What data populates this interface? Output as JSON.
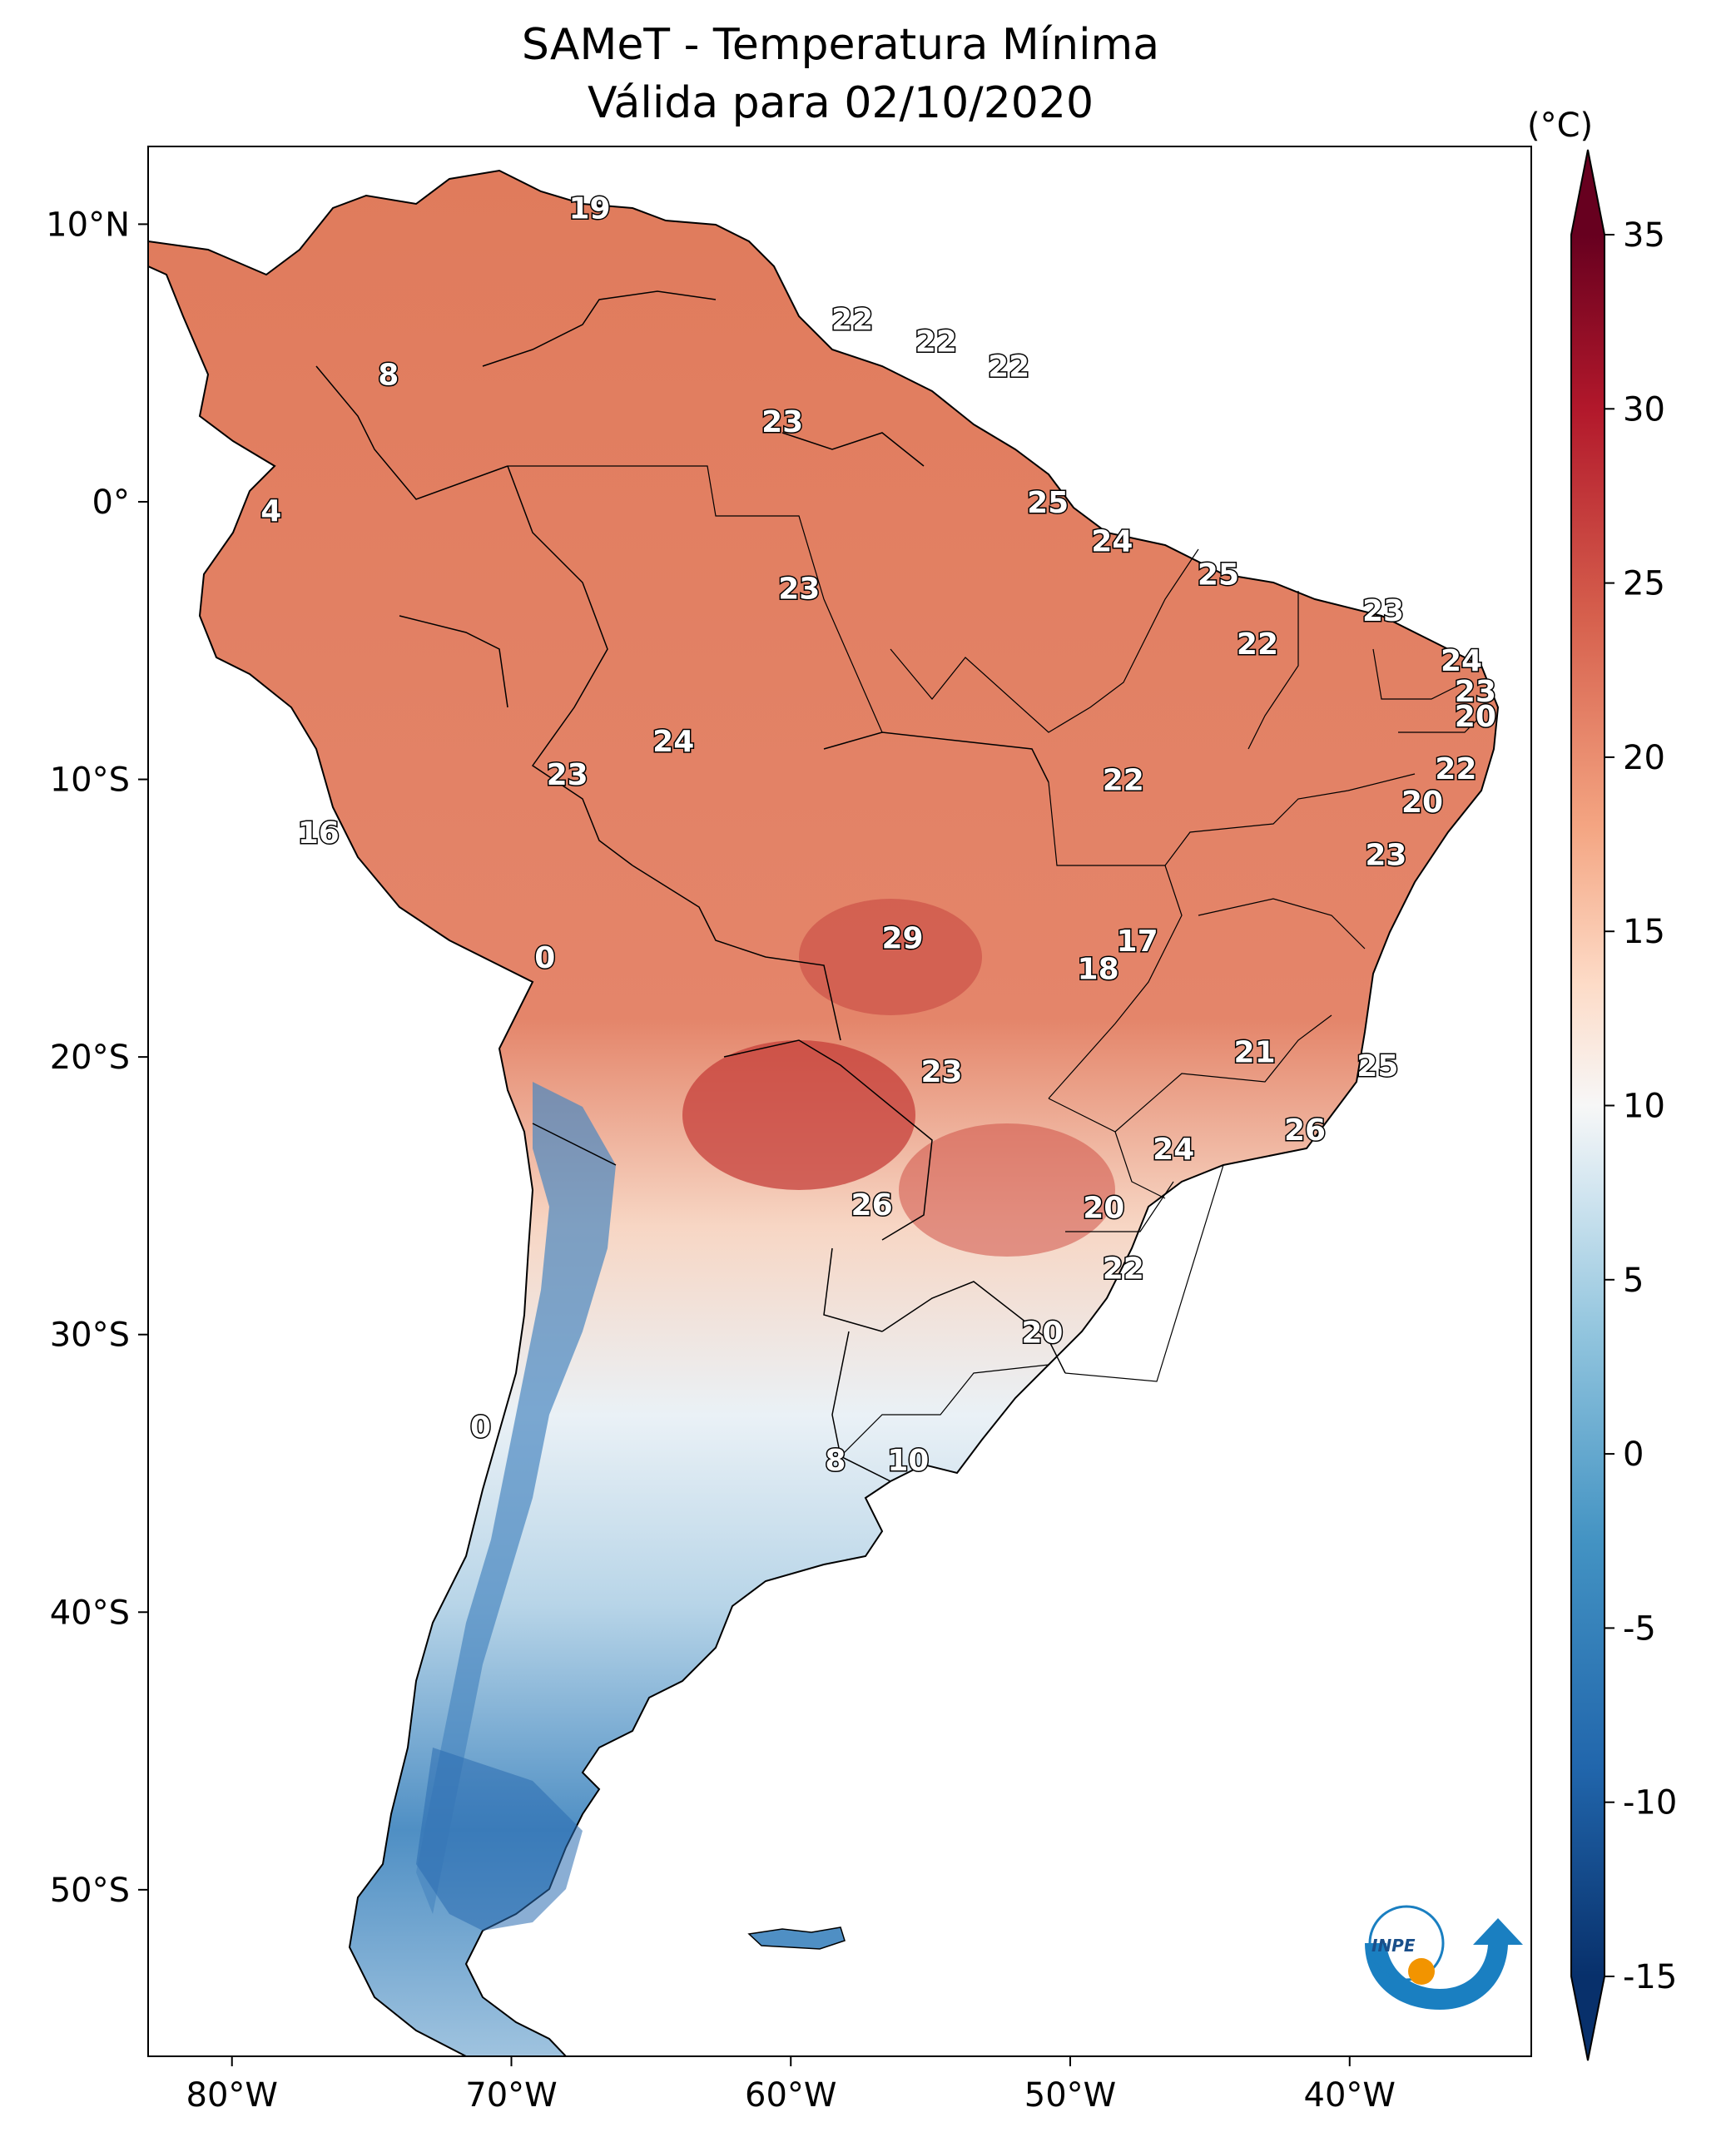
{
  "title": "SAMeT - Temperatura Mínima",
  "subtitle": "Válida para 02/10/2020",
  "map": {
    "lon_range": [
      -83,
      -33.5
    ],
    "lat_range": [
      -56,
      12.8
    ],
    "lon_ticks": [
      {
        "value": -80,
        "label": "80°W"
      },
      {
        "value": -70,
        "label": "70°W"
      },
      {
        "value": -60,
        "label": "60°W"
      },
      {
        "value": -50,
        "label": "50°W"
      },
      {
        "value": -40,
        "label": "40°W"
      }
    ],
    "lat_ticks": [
      {
        "value": 10,
        "label": "10°N"
      },
      {
        "value": 0,
        "label": "0°"
      },
      {
        "value": -10,
        "label": "10°S"
      },
      {
        "value": -20,
        "label": "20°S"
      },
      {
        "value": -30,
        "label": "30°S"
      },
      {
        "value": -40,
        "label": "40°S"
      },
      {
        "value": -50,
        "label": "50°S"
      }
    ],
    "labels": [
      {
        "lon": -67.2,
        "lat": 10.6,
        "text": "19"
      },
      {
        "lon": -57.8,
        "lat": 6.6,
        "text": "22"
      },
      {
        "lon": -54.8,
        "lat": 5.8,
        "text": "22"
      },
      {
        "lon": -52.2,
        "lat": 4.9,
        "text": "22"
      },
      {
        "lon": -60.3,
        "lat": 2.9,
        "text": "23"
      },
      {
        "lon": -74.4,
        "lat": 4.6,
        "text": "8"
      },
      {
        "lon": -50.8,
        "lat": 0.0,
        "text": "25"
      },
      {
        "lon": -78.6,
        "lat": -0.3,
        "text": "4"
      },
      {
        "lon": -48.5,
        "lat": -1.4,
        "text": "24"
      },
      {
        "lon": -59.7,
        "lat": -3.1,
        "text": "23"
      },
      {
        "lon": -44.7,
        "lat": -2.6,
        "text": "25"
      },
      {
        "lon": -38.8,
        "lat": -3.9,
        "text": "23"
      },
      {
        "lon": -43.3,
        "lat": -5.1,
        "text": "22"
      },
      {
        "lon": -36.0,
        "lat": -5.7,
        "text": "24"
      },
      {
        "lon": -35.5,
        "lat": -6.8,
        "text": "23"
      },
      {
        "lon": -35.5,
        "lat": -7.7,
        "text": "20"
      },
      {
        "lon": -64.2,
        "lat": -8.6,
        "text": "24"
      },
      {
        "lon": -68.0,
        "lat": -9.8,
        "text": "23"
      },
      {
        "lon": -48.1,
        "lat": -10.0,
        "text": "22"
      },
      {
        "lon": -36.2,
        "lat": -9.6,
        "text": "22"
      },
      {
        "lon": -37.4,
        "lat": -10.8,
        "text": "20"
      },
      {
        "lon": -76.9,
        "lat": -11.9,
        "text": "16"
      },
      {
        "lon": -38.7,
        "lat": -12.7,
        "text": "23"
      },
      {
        "lon": -56.0,
        "lat": -15.7,
        "text": "29"
      },
      {
        "lon": -47.6,
        "lat": -15.8,
        "text": "17"
      },
      {
        "lon": -49.0,
        "lat": -16.8,
        "text": "18"
      },
      {
        "lon": -68.8,
        "lat": -16.4,
        "text": "0"
      },
      {
        "lon": -43.4,
        "lat": -19.8,
        "text": "21"
      },
      {
        "lon": -39.0,
        "lat": -20.3,
        "text": "25"
      },
      {
        "lon": -54.6,
        "lat": -20.5,
        "text": "23"
      },
      {
        "lon": -41.6,
        "lat": -22.6,
        "text": "26"
      },
      {
        "lon": -46.3,
        "lat": -23.3,
        "text": "24"
      },
      {
        "lon": -57.1,
        "lat": -25.3,
        "text": "26"
      },
      {
        "lon": -48.8,
        "lat": -25.4,
        "text": "20"
      },
      {
        "lon": -48.1,
        "lat": -27.6,
        "text": "22"
      },
      {
        "lon": -51.0,
        "lat": -29.9,
        "text": "20"
      },
      {
        "lon": -71.1,
        "lat": -33.3,
        "text": "0"
      },
      {
        "lon": -58.4,
        "lat": -34.5,
        "text": "8"
      },
      {
        "lon": -55.8,
        "lat": -34.5,
        "text": "10"
      }
    ]
  },
  "colorbar": {
    "unit": "(°C)",
    "min": -15,
    "max": 35,
    "ticks": [
      {
        "value": 35,
        "label": "35"
      },
      {
        "value": 30,
        "label": "30"
      },
      {
        "value": 25,
        "label": "25"
      },
      {
        "value": 20,
        "label": "20"
      },
      {
        "value": 15,
        "label": "15"
      },
      {
        "value": 10,
        "label": "10"
      },
      {
        "value": 5,
        "label": "5"
      },
      {
        "value": 0,
        "label": "0"
      },
      {
        "value": -5,
        "label": "-5"
      },
      {
        "value": -10,
        "label": "-10"
      },
      {
        "value": -15,
        "label": "-15"
      }
    ]
  },
  "logo": {
    "text": "INPE",
    "colors": {
      "blue": "#1a7fc1",
      "orange": "#f29400"
    }
  },
  "palette": {
    "cold": "#08306b",
    "neutral": "#f7f7f7",
    "warm": "#67001f"
  }
}
